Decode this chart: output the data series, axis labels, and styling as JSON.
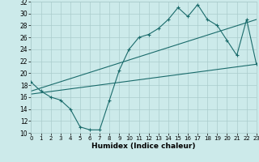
{
  "xlabel": "Humidex (Indice chaleur)",
  "bg_color": "#cceaea",
  "grid_color": "#aacccc",
  "line_color": "#1a6b6b",
  "ylim": [
    10,
    32
  ],
  "xlim": [
    0,
    23
  ],
  "yticks": [
    10,
    12,
    14,
    16,
    18,
    20,
    22,
    24,
    26,
    28,
    30,
    32
  ],
  "xticks": [
    0,
    1,
    2,
    3,
    4,
    5,
    6,
    7,
    8,
    9,
    10,
    11,
    12,
    13,
    14,
    15,
    16,
    17,
    18,
    19,
    20,
    21,
    22,
    23
  ],
  "line1_x": [
    0,
    1,
    2,
    3,
    4,
    5,
    6,
    7,
    8,
    9,
    10,
    11,
    12,
    13,
    14,
    15,
    16,
    17,
    18,
    19,
    20,
    21,
    22,
    23
  ],
  "line1_y": [
    18.5,
    17.0,
    16.0,
    15.5,
    14.0,
    11.0,
    10.5,
    10.5,
    15.5,
    20.5,
    24.0,
    26.0,
    26.5,
    27.5,
    29.0,
    31.0,
    29.5,
    31.5,
    29.0,
    28.0,
    25.5,
    23.0,
    29.0,
    21.5
  ],
  "line2_x": [
    0,
    23
  ],
  "line2_y": [
    17.0,
    29.0
  ],
  "line3_x": [
    0,
    23
  ],
  "line3_y": [
    16.5,
    21.5
  ],
  "figsize": [
    3.2,
    2.0
  ],
  "dpi": 100
}
